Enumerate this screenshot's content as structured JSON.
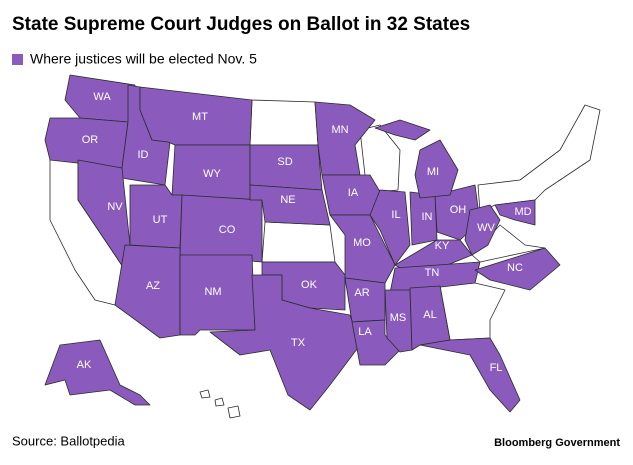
{
  "title": "State Supreme Court Judges on Ballot in 32 States",
  "legend": {
    "label": "Where justices will be elected Nov. 5",
    "color": "#8a5bbd"
  },
  "states": [
    "WA",
    "OR",
    "ID",
    "MT",
    "WY",
    "SD",
    "MN",
    "NV",
    "UT",
    "CO",
    "NE",
    "IA",
    "IL",
    "IN",
    "OH",
    "MI",
    "KY",
    "WV",
    "MD",
    "AZ",
    "NM",
    "OK",
    "MO",
    "AR",
    "TN",
    "NC",
    "TX",
    "LA",
    "MS",
    "AL",
    "FL",
    "AK"
  ],
  "source": "Source: Ballotpedia",
  "brand": "Bloomberg Government"
}
